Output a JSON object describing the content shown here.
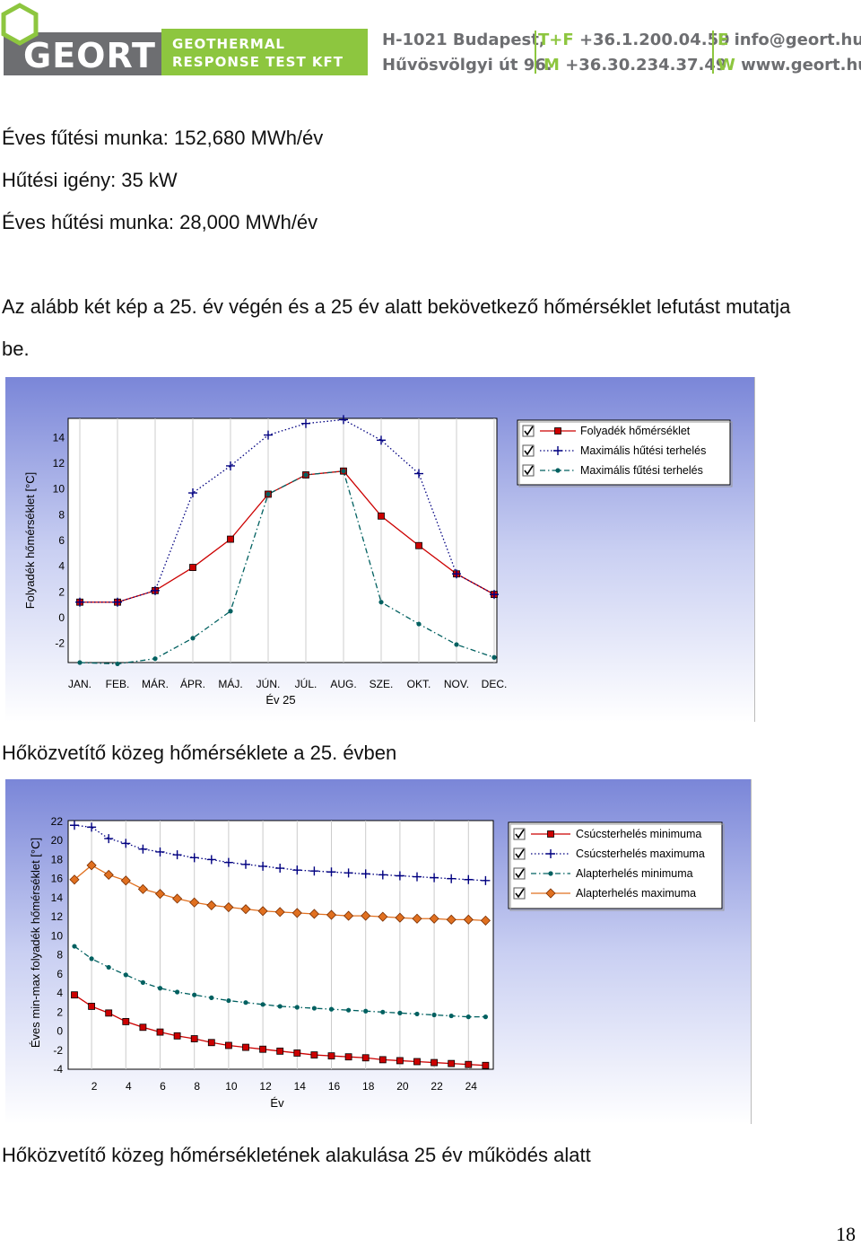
{
  "header": {
    "logo_text": "GEORT",
    "company_line1": "GEOTHERMAL",
    "company_line2": "RESPONSE TEST KFT",
    "address_line1": "H-1021 Budapest,",
    "address_line2": "Hűvösvölgyi út 96.",
    "phone_prefix": "T+F",
    "phone": "+36.1.200.04.59",
    "mobile_prefix": "M",
    "mobile": "+36.30.234.37.49",
    "email_prefix": "E",
    "email": "info@geort.hu",
    "web_prefix": "W",
    "web": "www.geort.hu",
    "colors": {
      "green": "#8dc63f",
      "gray": "#6d6e71"
    }
  },
  "text": {
    "heating_work": "Éves fűtési munka: 152,680 MWh/év",
    "cooling_demand": "Hűtési igény: 35 kW",
    "cooling_work": "Éves hűtési munka: 28,000 MWh/év",
    "intro_line1": "Az alább két kép a 25. év végén és a 25 év alatt bekövetkező hőmérséklet lefutást mutatja",
    "intro_line2": "be."
  },
  "captions": {
    "chart1": "Hőközvetítő közeg hőmérséklete a 25. évben",
    "chart2": "Hőközvetítő közeg hőmérsékletének alakulása 25 év működés alatt"
  },
  "page_number": "18",
  "chart_data": [
    {
      "type": "line",
      "xlabel": "Év 25",
      "ylabel": "Folyadék hőmérséklet [°C]",
      "categories": [
        "JAN.",
        "FEB.",
        "MÁR.",
        "ÁPR.",
        "MÁJ.",
        "JÚN.",
        "JÚL.",
        "AUG.",
        "SZE.",
        "OKT.",
        "NOV.",
        "DEC."
      ],
      "ylim": [
        -3.5,
        15.5
      ],
      "yticks": [
        -2,
        0,
        2,
        4,
        6,
        8,
        10,
        12,
        14
      ],
      "grid": "vertical",
      "legend_position": "top-right",
      "series": [
        {
          "name": "Folyadék hőmérséklet",
          "color": "#cc0000",
          "marker": "square",
          "dash": "solid",
          "values": [
            1.2,
            1.2,
            2.1,
            3.9,
            6.1,
            9.6,
            11.1,
            11.4,
            7.9,
            5.6,
            3.4,
            1.8
          ]
        },
        {
          "name": "Maximális hűtési terhelés",
          "color": "#000080",
          "marker": "cross",
          "dash": "dotted",
          "values": [
            1.2,
            1.2,
            2.1,
            9.7,
            11.8,
            14.2,
            15.1,
            15.4,
            13.8,
            11.2,
            3.4,
            1.8
          ]
        },
        {
          "name": "Maximális fűtési terhelés",
          "color": "#006060",
          "marker": "dot",
          "dash": "dashdot",
          "values": [
            -3.5,
            -3.6,
            -3.2,
            -1.6,
            0.5,
            9.6,
            11.1,
            11.4,
            1.2,
            -0.5,
            -2.1,
            -3.1
          ]
        }
      ]
    },
    {
      "type": "line",
      "xlabel": "Év",
      "ylabel": "Éves min-max folyadék hőmérséklet [°C]",
      "x": [
        1,
        2,
        3,
        4,
        5,
        6,
        7,
        8,
        9,
        10,
        11,
        12,
        13,
        14,
        15,
        16,
        17,
        18,
        19,
        20,
        21,
        22,
        23,
        24,
        25
      ],
      "xticks": [
        2,
        4,
        6,
        8,
        10,
        12,
        14,
        16,
        18,
        20,
        22,
        24
      ],
      "ylim": [
        -4,
        22
      ],
      "yticks": [
        -4,
        -2,
        0,
        2,
        4,
        6,
        8,
        10,
        12,
        14,
        16,
        18,
        20,
        22
      ],
      "grid": "vertical",
      "legend_position": "top-right",
      "series": [
        {
          "name": "Csúcsterhelés minimuma",
          "color": "#cc0000",
          "marker": "square",
          "dash": "solid",
          "values": [
            3.8,
            2.6,
            1.9,
            1.0,
            0.4,
            -0.1,
            -0.5,
            -0.8,
            -1.2,
            -1.5,
            -1.7,
            -1.9,
            -2.1,
            -2.3,
            -2.5,
            -2.6,
            -2.7,
            -2.8,
            -3.0,
            -3.1,
            -3.2,
            -3.3,
            -3.4,
            -3.5,
            -3.6
          ]
        },
        {
          "name": "Csúcsterhelés maximuma",
          "color": "#000080",
          "marker": "cross",
          "dash": "dotted",
          "values": [
            21.6,
            21.4,
            20.2,
            19.7,
            19.1,
            18.8,
            18.5,
            18.2,
            18.0,
            17.7,
            17.5,
            17.3,
            17.1,
            16.9,
            16.8,
            16.7,
            16.6,
            16.5,
            16.4,
            16.3,
            16.2,
            16.1,
            16.0,
            15.9,
            15.8
          ]
        },
        {
          "name": "Alapterhelés minimuma",
          "color": "#006060",
          "marker": "dot",
          "dash": "dashdot",
          "values": [
            8.9,
            7.6,
            6.7,
            5.9,
            5.1,
            4.5,
            4.1,
            3.8,
            3.5,
            3.2,
            3.0,
            2.8,
            2.6,
            2.5,
            2.4,
            2.3,
            2.2,
            2.1,
            2.0,
            1.9,
            1.8,
            1.7,
            1.6,
            1.5,
            1.5
          ]
        },
        {
          "name": "Alapterhelés maximuma",
          "color": "#e07020",
          "marker": "diamond",
          "dash": "solid",
          "values": [
            15.9,
            17.4,
            16.4,
            15.8,
            14.9,
            14.4,
            13.9,
            13.5,
            13.2,
            13.0,
            12.8,
            12.6,
            12.5,
            12.4,
            12.3,
            12.2,
            12.1,
            12.1,
            12.0,
            11.9,
            11.8,
            11.8,
            11.7,
            11.7,
            11.6
          ]
        }
      ]
    }
  ]
}
